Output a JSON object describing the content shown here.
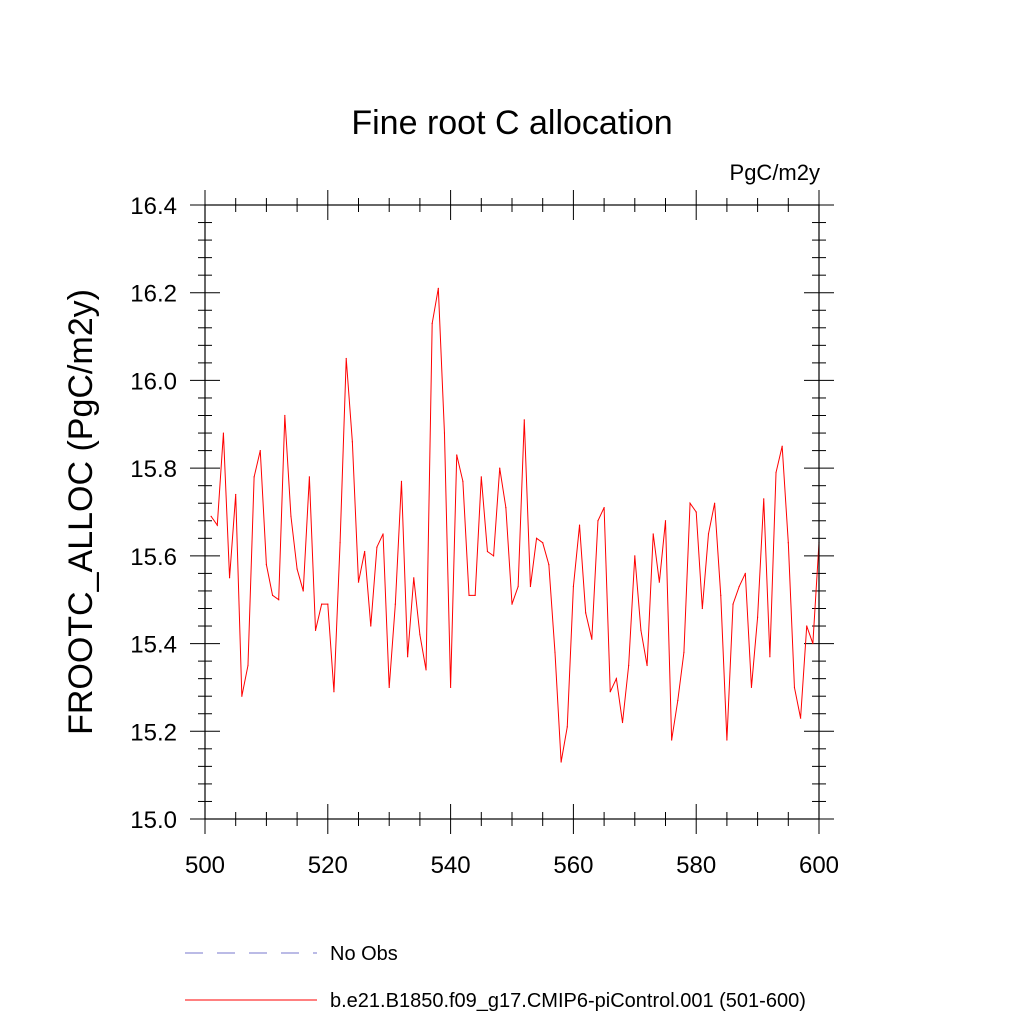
{
  "chart_data": {
    "type": "line",
    "title": "Fine root C allocation",
    "units_label": "PgC/m2y",
    "ylabel": "FROOTC_ALLOC  (PgC/m2y)",
    "xlabel": "",
    "xlim": [
      500,
      600
    ],
    "ylim": [
      15.0,
      16.4
    ],
    "xticks": [
      500,
      520,
      540,
      560,
      580,
      600
    ],
    "xtick_labels": [
      "500",
      "520",
      "540",
      "560",
      "580",
      "600"
    ],
    "yticks": [
      15.0,
      15.2,
      15.4,
      15.6,
      15.8,
      16.0,
      16.2,
      16.4
    ],
    "ytick_labels": [
      "15.0",
      "15.2",
      "15.4",
      "15.6",
      "15.8",
      "16.0",
      "16.2",
      "16.4"
    ],
    "x_minor_step": 5,
    "y_minor_step": 0.04,
    "series": [
      {
        "name": "b.e21.B1850.f09_g17.CMIP6-piControl.001 (501-600)",
        "color": "#ff0000",
        "x_start": 501,
        "values": [
          15.69,
          15.67,
          15.88,
          15.55,
          15.74,
          15.28,
          15.35,
          15.78,
          15.84,
          15.58,
          15.51,
          15.5,
          15.92,
          15.69,
          15.57,
          15.52,
          15.78,
          15.43,
          15.49,
          15.49,
          15.29,
          15.63,
          16.05,
          15.86,
          15.54,
          15.61,
          15.44,
          15.62,
          15.65,
          15.3,
          15.49,
          15.77,
          15.37,
          15.55,
          15.42,
          15.34,
          16.13,
          16.21,
          15.88,
          15.3,
          15.83,
          15.77,
          15.51,
          15.51,
          15.78,
          15.61,
          15.6,
          15.8,
          15.71,
          15.49,
          15.53,
          15.91,
          15.53,
          15.64,
          15.63,
          15.58,
          15.38,
          15.13,
          15.21,
          15.53,
          15.67,
          15.47,
          15.41,
          15.68,
          15.71,
          15.29,
          15.32,
          15.22,
          15.35,
          15.6,
          15.43,
          15.35,
          15.65,
          15.54,
          15.68,
          15.18,
          15.27,
          15.38,
          15.72,
          15.7,
          15.48,
          15.65,
          15.72,
          15.51,
          15.18,
          15.49,
          15.53,
          15.56,
          15.3,
          15.46,
          15.73,
          15.37,
          15.79,
          15.85,
          15.63,
          15.3,
          15.23,
          15.44,
          15.4,
          15.63
        ]
      },
      {
        "name": "No Obs",
        "color": "#7777cc",
        "values": []
      }
    ],
    "legend": [
      {
        "label": "No Obs",
        "style": "dashed",
        "color": "#7777cc"
      },
      {
        "label": "b.e21.B1850.f09_g17.CMIP6-piControl.001 (501-600)",
        "style": "solid",
        "color": "#ff0000"
      }
    ]
  }
}
